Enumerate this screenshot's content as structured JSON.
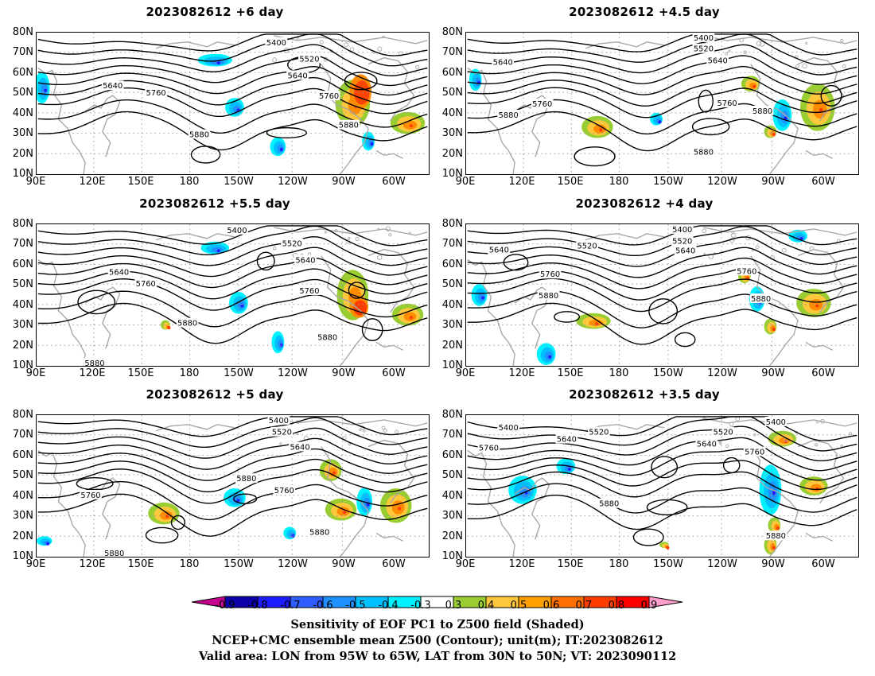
{
  "panels": [
    {
      "id": "p6",
      "title": "2023082612 +6 day",
      "contour_labels": [
        "5400",
        "5520",
        "5640",
        "5640",
        "5760",
        "5760",
        "5880",
        "5880"
      ]
    },
    {
      "id": "p4_5",
      "title": "2023082612 +4.5 day",
      "contour_labels": [
        "5400",
        "5520",
        "5640",
        "5640",
        "5760",
        "5760",
        "5880",
        "5880",
        "5880"
      ]
    },
    {
      "id": "p5_5",
      "title": "2023082612 +5.5 day",
      "contour_labels": [
        "5400",
        "5520",
        "5640",
        "5640",
        "5760",
        "5760",
        "5880",
        "5880",
        "5880"
      ]
    },
    {
      "id": "p4",
      "title": "2023082612 +4 day",
      "contour_labels": [
        "5400",
        "5520",
        "5520",
        "5640",
        "5640",
        "5760",
        "5760",
        "5880",
        "5880"
      ]
    },
    {
      "id": "p5",
      "title": "2023082612 +5 day",
      "contour_labels": [
        "5400",
        "5520",
        "5640",
        "5760",
        "5760",
        "5880",
        "5880",
        "5880"
      ]
    },
    {
      "id": "p3_5",
      "title": "2023082612 +3.5 day",
      "contour_labels": [
        "5400",
        "5400",
        "5520",
        "5520",
        "5640",
        "5640",
        "5760",
        "5760",
        "5880",
        "5880"
      ]
    }
  ],
  "lat_labels": [
    "80N",
    "70N",
    "60N",
    "50N",
    "40N",
    "30N",
    "20N",
    "10N"
  ],
  "lon_labels": [
    "90E",
    "120E",
    "150E",
    "180",
    "150W",
    "120W",
    "90W",
    "60W"
  ],
  "colorbar": {
    "labels": [
      "-0.9",
      "-0.8",
      "-0.7",
      "-0.6",
      "-0.5",
      "-0.4",
      "-0.3",
      "0.3",
      "0.4",
      "0.5",
      "0.6",
      "0.7",
      "0.8",
      "0.9"
    ],
    "colors": [
      "#c4008c",
      "#0c00a8",
      "#1d1dff",
      "#2e5cff",
      "#1e90ff",
      "#00bfff",
      "#00f2ff",
      "#ffffff",
      "#9acd32",
      "#ffc83c",
      "#ffa000",
      "#ff6e00",
      "#ff3c00",
      "#ff0000",
      "#ff9ecd"
    ]
  },
  "captions": [
    "Sensitivity of EOF PC1 to Z500 field (Shaded)",
    "NCEP+CMC ensemble mean Z500 (Contour); unit(m); IT:2023082612",
    "Valid area: LON from 95W to 65W, LAT from 30N to 50N; VT: 2023090112"
  ]
}
